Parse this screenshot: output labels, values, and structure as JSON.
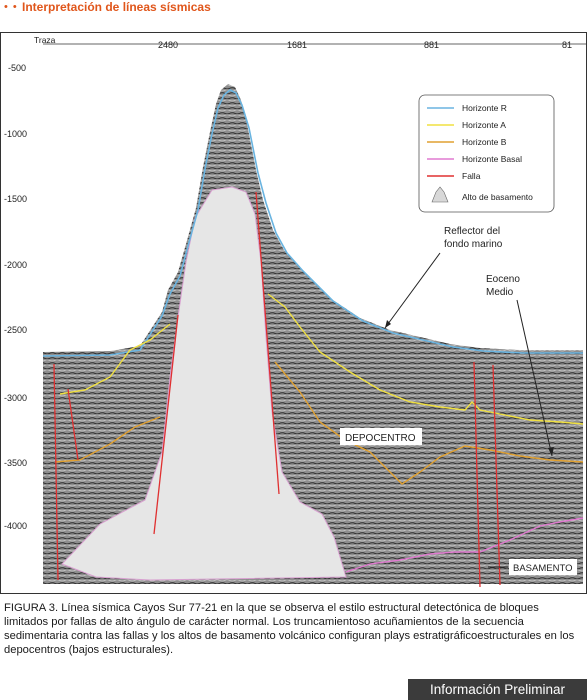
{
  "header": {
    "dots": "• •",
    "title": "Interpretación de líneas sísmicas"
  },
  "figure": {
    "trace_label": "Traza",
    "trace_ticks": [
      "2480",
      "1681",
      "881",
      "81"
    ],
    "depth_ticks": [
      "-500",
      "-1000",
      "-1500",
      "-2000",
      "-2500",
      "-3000",
      "-3500",
      "-4000"
    ],
    "legend": {
      "items": [
        {
          "label": "Horizonte R",
          "color": "#6ab4e0"
        },
        {
          "label": "Horizonte A",
          "color": "#f0e040"
        },
        {
          "label": "Horizonte B",
          "color": "#e0a030"
        },
        {
          "label": "Horizonte Basal",
          "color": "#e07ad0"
        },
        {
          "label": "Falla",
          "color": "#e03030"
        }
      ],
      "basement_label": "Alto de basamento"
    },
    "annotations": {
      "reflector_line1": "Reflector del",
      "reflector_line2": "fondo marino",
      "eoceno_line1": "Eoceno",
      "eoceno_line2": "Medio",
      "depocentro": "DEPOCENTRO",
      "basamento": "BASAMENTO"
    }
  },
  "caption": "FIGURA 3. Línea sísmica Cayos Sur 77-21 en la que se observa el estilo estructural detectónica de bloques limitados por fallas de alto ángulo de carácter normal. Los truncamientoso acuñamientos de la secuencia sedimentaria contra las fallas y los altos de basamento volcánico configuran plays estratigráficoestructurales en los depocentros (bajos estructurales).",
  "badge": "Información Preliminar"
}
